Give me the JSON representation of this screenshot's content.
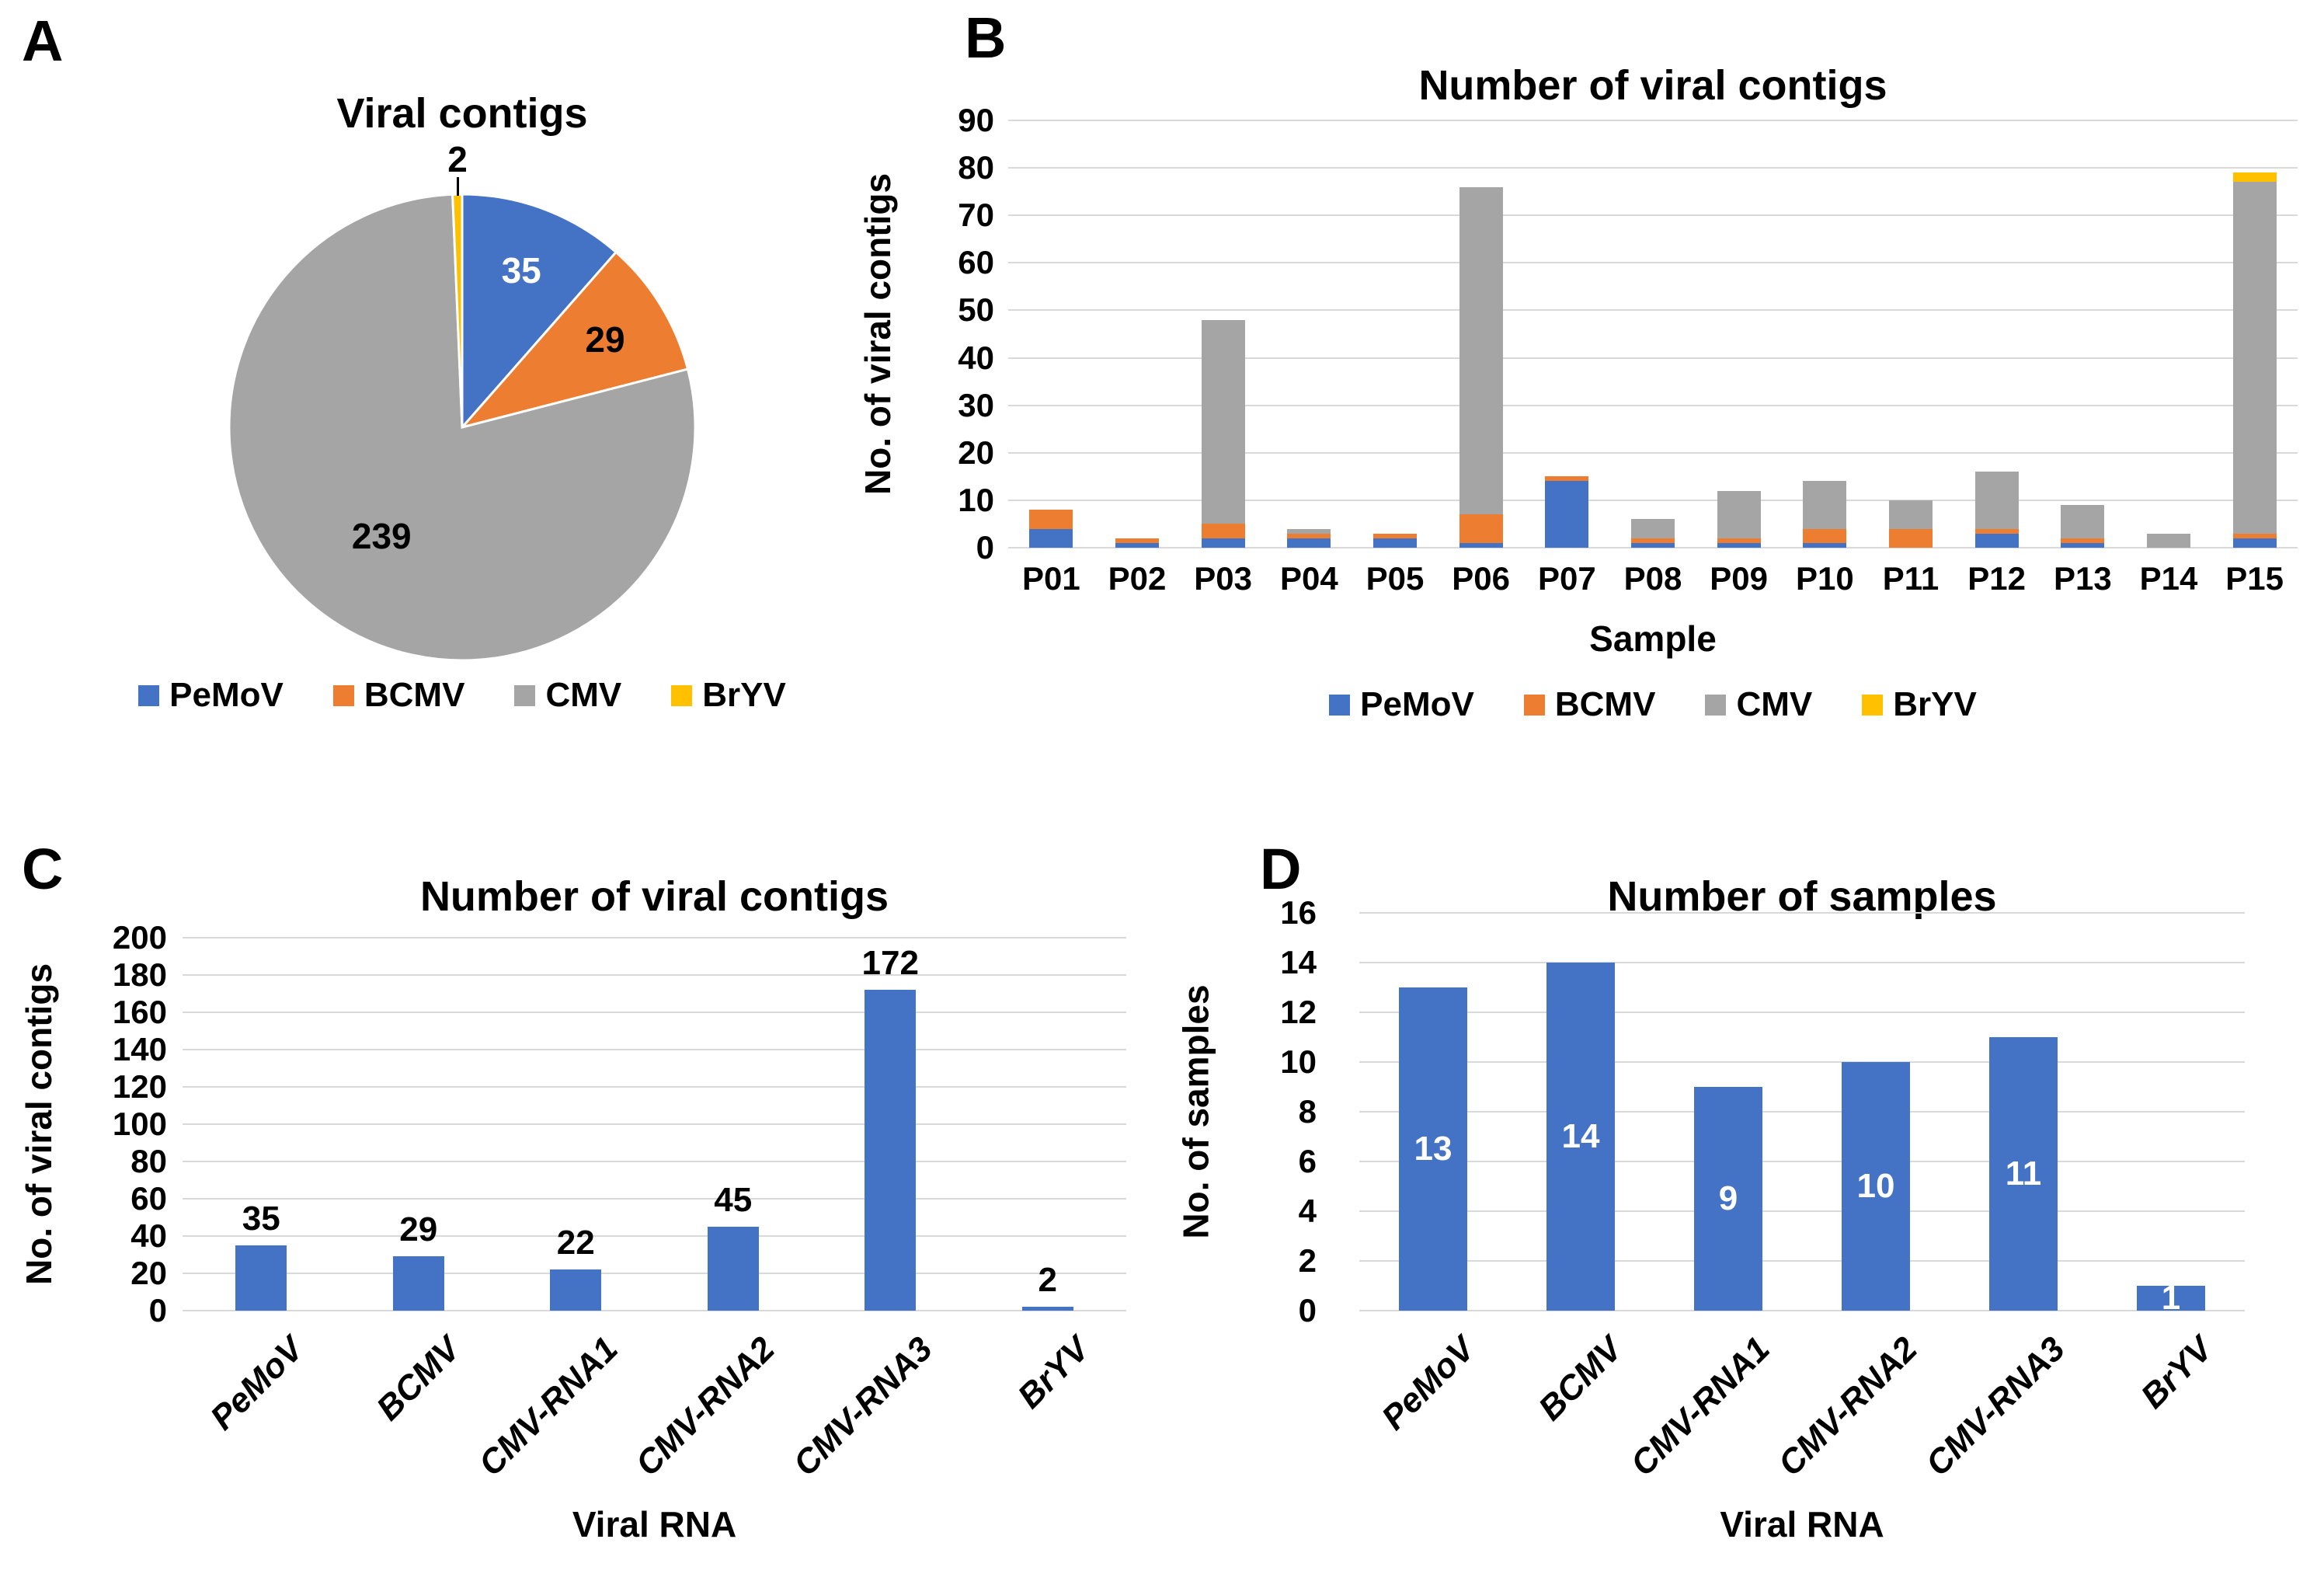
{
  "figure_labels": {
    "a": "A",
    "b": "B",
    "c": "C",
    "d": "D"
  },
  "colors": {
    "pemov": "#4472C4",
    "bcmv": "#ED7D31",
    "cmv": "#A5A5A5",
    "bryv": "#FFC000",
    "gridline": "#D9D9D9",
    "text": "#000000",
    "background": "#FFFFFF",
    "bar_label_inside": "#FFFFFF"
  },
  "legend": {
    "items": [
      {
        "label": "PeMoV",
        "color": "#4472C4"
      },
      {
        "label": "BCMV",
        "color": "#ED7D31"
      },
      {
        "label": "CMV",
        "color": "#A5A5A5"
      },
      {
        "label": "BrYV",
        "color": "#FFC000"
      }
    ]
  },
  "chart_data": [
    {
      "panel": "A",
      "type": "pie",
      "title": "Viral contigs",
      "labels": [
        "PeMoV",
        "BCMV",
        "CMV",
        "BrYV"
      ],
      "values": [
        35,
        29,
        239,
        2
      ],
      "colors": [
        "#4472C4",
        "#ED7D31",
        "#A5A5A5",
        "#FFC000"
      ],
      "data_labels": [
        "35",
        "29",
        "239",
        "2"
      ],
      "data_label_colors": [
        "#FFFFFF",
        "#000000",
        "#000000",
        "#000000"
      ],
      "start_angle_deg": 0,
      "direction": "clockwise",
      "legend_position": "bottom"
    },
    {
      "panel": "B",
      "type": "bar",
      "stacked": true,
      "title": "Number of viral contigs",
      "xlabel": "Sample",
      "ylabel": "No. of viral contigs",
      "ylim": [
        0,
        90
      ],
      "ytick_step": 10,
      "grid": true,
      "legend_position": "bottom",
      "categories": [
        "P01",
        "P02",
        "P03",
        "P04",
        "P05",
        "P06",
        "P07",
        "P08",
        "P09",
        "P10",
        "P11",
        "P12",
        "P13",
        "P14",
        "P15"
      ],
      "series": [
        {
          "name": "PeMoV",
          "color": "#4472C4",
          "values": [
            4,
            1,
            2,
            2,
            2,
            1,
            14,
            1,
            1,
            1,
            0,
            3,
            1,
            0,
            2
          ]
        },
        {
          "name": "BCMV",
          "color": "#ED7D31",
          "values": [
            4,
            1,
            3,
            1,
            1,
            6,
            1,
            1,
            1,
            3,
            4,
            1,
            1,
            0,
            1
          ]
        },
        {
          "name": "CMV",
          "color": "#A5A5A5",
          "values": [
            0,
            0,
            43,
            1,
            0,
            69,
            0,
            4,
            10,
            10,
            6,
            12,
            7,
            3,
            74
          ]
        },
        {
          "name": "BrYV",
          "color": "#FFC000",
          "values": [
            0,
            0,
            0,
            0,
            0,
            0,
            0,
            0,
            0,
            0,
            0,
            0,
            0,
            0,
            2
          ]
        }
      ],
      "stack_totals": [
        8,
        2,
        48,
        4,
        3,
        76,
        15,
        6,
        12,
        14,
        10,
        16,
        9,
        3,
        79
      ]
    },
    {
      "panel": "C",
      "type": "bar",
      "title": "Number of viral contigs",
      "xlabel": "Viral RNA",
      "ylabel": "No. of viral contigs",
      "ylim": [
        0,
        200
      ],
      "ytick_step": 20,
      "grid": true,
      "categories": [
        "PeMoV",
        "BCMV",
        "CMV-RNA1",
        "CMV-RNA2",
        "CMV-RNA3",
        "BrYV"
      ],
      "values": [
        35,
        29,
        22,
        45,
        172,
        2
      ],
      "bar_color": "#4472C4",
      "data_labels": [
        "35",
        "29",
        "22",
        "45",
        "172",
        "2"
      ],
      "data_label_position": "above",
      "data_label_color": "#000000"
    },
    {
      "panel": "D",
      "type": "bar",
      "title": "Number of samples",
      "xlabel": "Viral RNA",
      "ylabel": "No. of samples",
      "ylim": [
        0,
        16
      ],
      "ytick_step": 2,
      "grid": true,
      "categories": [
        "PeMoV",
        "BCMV",
        "CMV-RNA1",
        "CMV-RNA2",
        "CMV-RNA3",
        "BrYV"
      ],
      "values": [
        13,
        14,
        9,
        10,
        11,
        1
      ],
      "bar_color": "#4472C4",
      "data_labels": [
        "13",
        "14",
        "9",
        "10",
        "11",
        "1"
      ],
      "data_label_position": "inside",
      "data_label_color": "#FFFFFF"
    }
  ]
}
